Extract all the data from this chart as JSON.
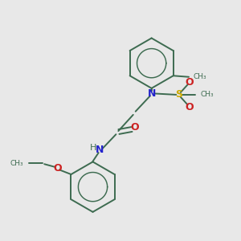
{
  "bg_color": "#e8e8e8",
  "bond_color": "#3d6b50",
  "N_color": "#2222cc",
  "O_color": "#cc2222",
  "S_color": "#ccaa00",
  "C_color": "#3d6b50",
  "lw": 1.4,
  "xlim": [
    0,
    10
  ],
  "ylim": [
    0,
    10
  ]
}
